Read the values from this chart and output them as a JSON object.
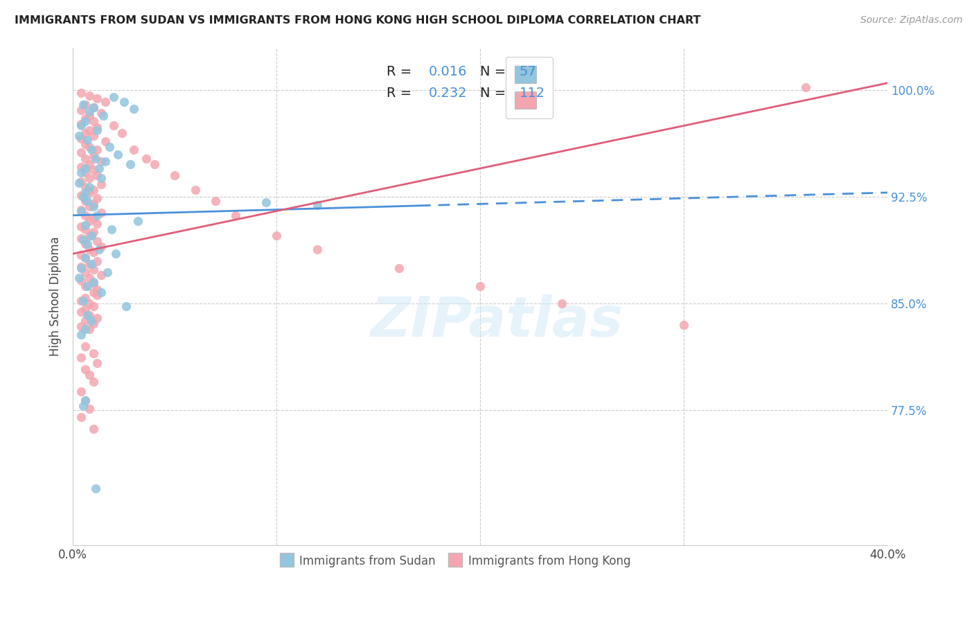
{
  "title": "IMMIGRANTS FROM SUDAN VS IMMIGRANTS FROM HONG KONG HIGH SCHOOL DIPLOMA CORRELATION CHART",
  "source": "Source: ZipAtlas.com",
  "ylabel": "High School Diploma",
  "xlim": [
    0.0,
    0.4
  ],
  "ylim": [
    0.68,
    1.03
  ],
  "watermark": "ZIPatlas",
  "legend_sudan_r": "0.016",
  "legend_sudan_n": "57",
  "legend_hk_r": "0.232",
  "legend_hk_n": "112",
  "sudan_color": "#92C5DE",
  "hk_color": "#F4A6B0",
  "sudan_line_color": "#4A90D9",
  "hk_line_color": "#E05C7A",
  "ytick_vals": [
    0.775,
    0.85,
    0.925,
    1.0
  ],
  "ytick_labels": [
    "77.5%",
    "85.0%",
    "92.5%",
    "100.0%"
  ],
  "sudan_scatter_x": [
    0.005,
    0.01,
    0.02,
    0.008,
    0.015,
    0.025,
    0.03,
    0.006,
    0.004,
    0.012,
    0.003,
    0.007,
    0.018,
    0.009,
    0.022,
    0.011,
    0.028,
    0.006,
    0.004,
    0.014,
    0.003,
    0.008,
    0.006,
    0.005,
    0.016,
    0.013,
    0.007,
    0.01,
    0.004,
    0.012,
    0.032,
    0.006,
    0.019,
    0.009,
    0.005,
    0.007,
    0.013,
    0.021,
    0.006,
    0.009,
    0.004,
    0.017,
    0.003,
    0.01,
    0.007,
    0.014,
    0.005,
    0.026,
    0.007,
    0.009,
    0.095,
    0.12,
    0.006,
    0.004,
    0.011,
    0.005,
    0.006
  ],
  "sudan_scatter_y": [
    0.99,
    0.988,
    0.995,
    0.985,
    0.982,
    0.992,
    0.987,
    0.978,
    0.975,
    0.972,
    0.968,
    0.965,
    0.96,
    0.958,
    0.955,
    0.952,
    0.948,
    0.945,
    0.942,
    0.938,
    0.935,
    0.932,
    0.928,
    0.925,
    0.95,
    0.945,
    0.922,
    0.918,
    0.915,
    0.912,
    0.908,
    0.905,
    0.902,
    0.898,
    0.895,
    0.892,
    0.888,
    0.885,
    0.882,
    0.878,
    0.875,
    0.872,
    0.868,
    0.865,
    0.862,
    0.858,
    0.852,
    0.848,
    0.842,
    0.838,
    0.921,
    0.919,
    0.832,
    0.828,
    0.72,
    0.778,
    0.782
  ],
  "hk_scatter_x": [
    0.004,
    0.008,
    0.012,
    0.016,
    0.006,
    0.01,
    0.004,
    0.014,
    0.008,
    0.006,
    0.01,
    0.004,
    0.012,
    0.008,
    0.006,
    0.01,
    0.004,
    0.016,
    0.006,
    0.008,
    0.012,
    0.004,
    0.01,
    0.006,
    0.014,
    0.008,
    0.004,
    0.01,
    0.006,
    0.012,
    0.008,
    0.004,
    0.014,
    0.006,
    0.01,
    0.008,
    0.004,
    0.012,
    0.006,
    0.01,
    0.008,
    0.004,
    0.014,
    0.006,
    0.01,
    0.008,
    0.012,
    0.004,
    0.006,
    0.01,
    0.008,
    0.004,
    0.012,
    0.006,
    0.014,
    0.008,
    0.01,
    0.004,
    0.006,
    0.012,
    0.008,
    0.004,
    0.01,
    0.006,
    0.014,
    0.008,
    0.004,
    0.01,
    0.006,
    0.012,
    0.02,
    0.024,
    0.03,
    0.036,
    0.04,
    0.05,
    0.06,
    0.07,
    0.08,
    0.1,
    0.12,
    0.16,
    0.2,
    0.24,
    0.3,
    0.36,
    0.01,
    0.012,
    0.006,
    0.004,
    0.008,
    0.01,
    0.006,
    0.004,
    0.008,
    0.012,
    0.006,
    0.01,
    0.004,
    0.008,
    0.006,
    0.01,
    0.004,
    0.012,
    0.006,
    0.008,
    0.01,
    0.004,
    0.006,
    0.008,
    0.004,
    0.01
  ],
  "hk_scatter_y": [
    0.998,
    0.996,
    0.994,
    0.992,
    0.99,
    0.988,
    0.986,
    0.984,
    0.982,
    0.98,
    0.978,
    0.976,
    0.974,
    0.972,
    0.97,
    0.968,
    0.966,
    0.964,
    0.962,
    0.96,
    0.958,
    0.956,
    0.954,
    0.952,
    0.95,
    0.948,
    0.946,
    0.944,
    0.942,
    0.94,
    0.938,
    0.936,
    0.934,
    0.932,
    0.93,
    0.928,
    0.926,
    0.924,
    0.922,
    0.92,
    0.918,
    0.916,
    0.914,
    0.912,
    0.91,
    0.908,
    0.906,
    0.904,
    0.902,
    0.9,
    0.898,
    0.896,
    0.894,
    0.892,
    0.89,
    0.888,
    0.886,
    0.884,
    0.882,
    0.88,
    0.878,
    0.876,
    0.874,
    0.872,
    0.87,
    0.868,
    0.866,
    0.864,
    0.862,
    0.86,
    0.975,
    0.97,
    0.958,
    0.952,
    0.948,
    0.94,
    0.93,
    0.922,
    0.912,
    0.898,
    0.888,
    0.875,
    0.862,
    0.85,
    0.835,
    1.002,
    0.858,
    0.856,
    0.854,
    0.852,
    0.85,
    0.848,
    0.846,
    0.844,
    0.842,
    0.84,
    0.838,
    0.836,
    0.834,
    0.832,
    0.82,
    0.815,
    0.812,
    0.808,
    0.804,
    0.8,
    0.795,
    0.788,
    0.782,
    0.776,
    0.77,
    0.762
  ]
}
